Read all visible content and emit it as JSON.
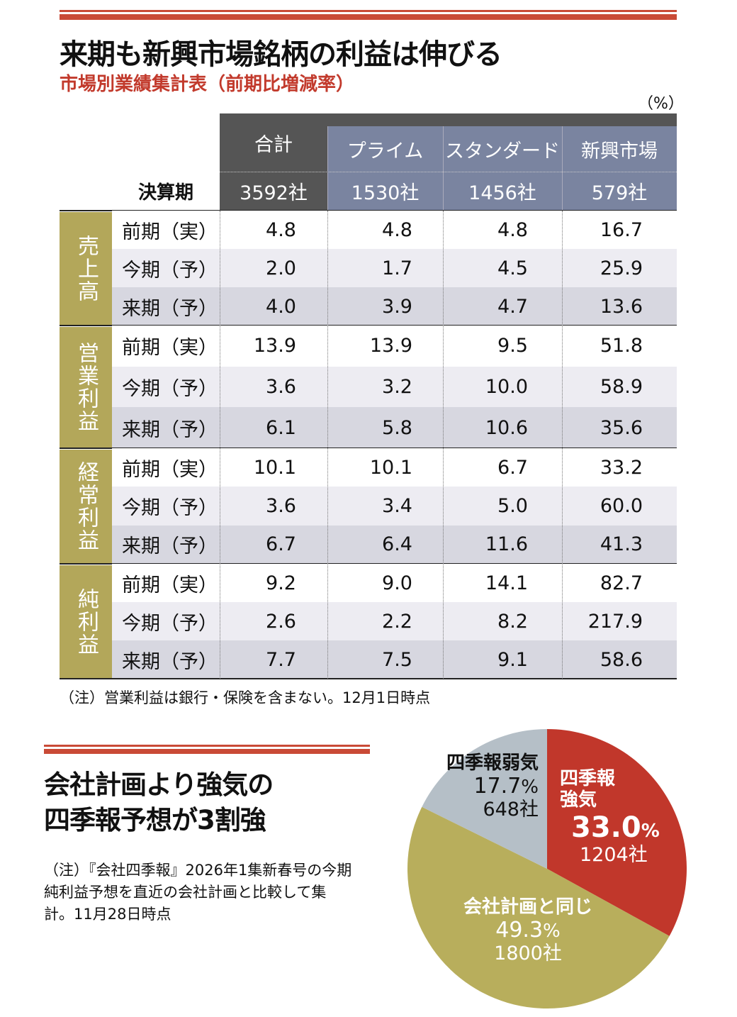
{
  "header": {
    "title": "来期も新興市場銘柄の利益は伸びる",
    "subtitle": "市場別業績集計表（前期比増減率）",
    "unit": "（%）"
  },
  "table": {
    "period_header": "決算期",
    "columns": [
      {
        "name": "合計",
        "count": "3592社"
      },
      {
        "name": "プライム",
        "count": "1530社"
      },
      {
        "name": "スタンダード",
        "count": "1456社"
      },
      {
        "name": "新興市場",
        "count": "579社"
      }
    ],
    "groups": [
      {
        "label": "売上高",
        "rows": [
          {
            "period": "前期（実）",
            "values": [
              "4.8",
              "4.8",
              "4.8",
              "16.7"
            ]
          },
          {
            "period": "今期（予）",
            "values": [
              "2.0",
              "1.7",
              "4.5",
              "25.9"
            ]
          },
          {
            "period": "来期（予）",
            "values": [
              "4.0",
              "3.9",
              "4.7",
              "13.6"
            ]
          }
        ]
      },
      {
        "label": "営業利益",
        "rows": [
          {
            "period": "前期（実）",
            "values": [
              "13.9",
              "13.9",
              "9.5",
              "51.8"
            ]
          },
          {
            "period": "今期（予）",
            "values": [
              "3.6",
              "3.2",
              "10.0",
              "58.9"
            ]
          },
          {
            "period": "来期（予）",
            "values": [
              "6.1",
              "5.8",
              "10.6",
              "35.6"
            ]
          }
        ]
      },
      {
        "label": "経常利益",
        "rows": [
          {
            "period": "前期（実）",
            "values": [
              "10.1",
              "10.1",
              "6.7",
              "33.2"
            ]
          },
          {
            "period": "今期（予）",
            "values": [
              "3.6",
              "3.4",
              "5.0",
              "60.0"
            ]
          },
          {
            "period": "来期（予）",
            "values": [
              "6.7",
              "6.4",
              "11.6",
              "41.3"
            ]
          }
        ]
      },
      {
        "label": "純利益",
        "rows": [
          {
            "period": "前期（実）",
            "values": [
              "9.2",
              "9.0",
              "14.1",
              "82.7"
            ]
          },
          {
            "period": "今期（予）",
            "values": [
              "2.6",
              "2.2",
              "8.2",
              "217.9"
            ]
          },
          {
            "period": "来期（予）",
            "values": [
              "7.7",
              "7.5",
              "9.1",
              "58.6"
            ]
          }
        ]
      }
    ],
    "note": "（注）営業利益は銀行・保険を含まない。12月1日時点"
  },
  "section2": {
    "title_line1": "会社計画より強気の",
    "title_line2": "四季報予想が3割強",
    "note": "（注）『会社四季報』2026年1集新春号の今期純利益予想を直近の会社計画と比較して集計。11月28日時点"
  },
  "chart_data": {
    "type": "pie",
    "start": "top",
    "direction": "clockwise",
    "slices": [
      {
        "label": "四季報強気",
        "label_lines": [
          "四季報",
          "強気"
        ],
        "value": 33.0,
        "pct_text": "33.0",
        "pct_sign": "%",
        "count": "1204社",
        "color": "#c1372b"
      },
      {
        "label": "会社計画と同じ",
        "label_lines": [
          "会社計画と同じ"
        ],
        "value": 49.3,
        "pct_text": "49.3",
        "pct_sign": "%",
        "count": "1800社",
        "color": "#b8ae5c"
      },
      {
        "label": "四季報弱気",
        "label_lines": [
          "四季報弱気"
        ],
        "value": 17.7,
        "pct_text": "17.7",
        "pct_sign": "%",
        "count": "648社",
        "color": "#b5bfc7"
      }
    ]
  },
  "colors": {
    "accent_rule": "#c94a36",
    "header_total": "#555555",
    "header_market": "#7a84a0",
    "group_label": "#b3a75a",
    "row_alt1": "#edecf2",
    "row_alt2": "#d7d7e0"
  }
}
